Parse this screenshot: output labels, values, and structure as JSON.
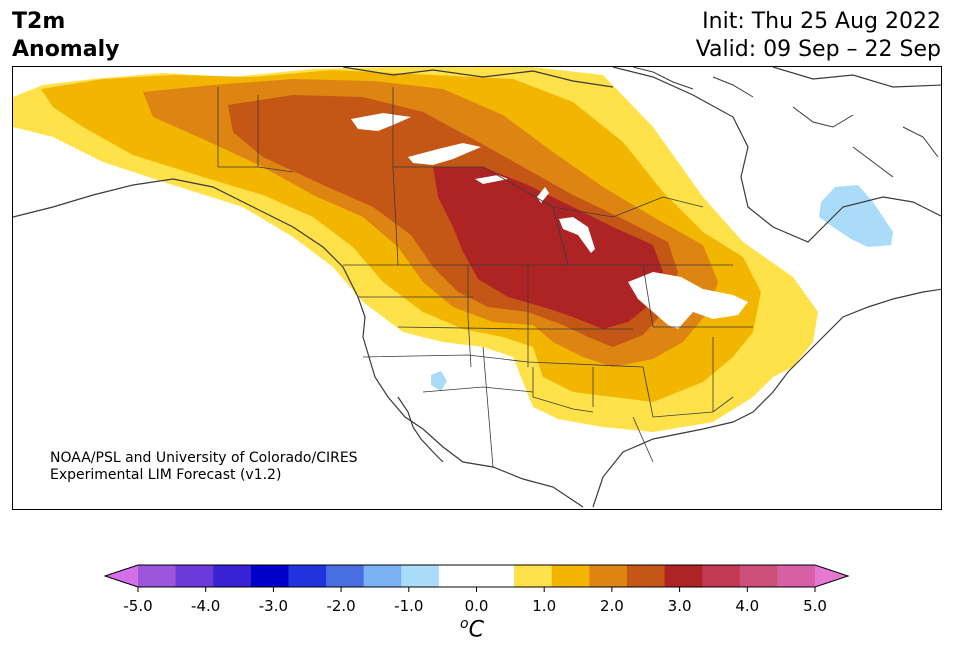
{
  "title": {
    "line1": "T2m",
    "line2": "Anomaly"
  },
  "dates": {
    "init": "Init: Thu 25 Aug 2022",
    "valid": "Valid: 09 Sep – 22 Sep"
  },
  "credit": {
    "line1": "NOAA/PSL and University of Colorado/CIRES",
    "line2": "Experimental LIM Forecast (v1.2)"
  },
  "colorbar": {
    "colors": [
      "#d670e8",
      "#9b55db",
      "#6b3ad9",
      "#3a22d6",
      "#0000cc",
      "#2233dd",
      "#4a6fe3",
      "#7ab1f2",
      "#aadcfa",
      "#ffffff",
      "#ffffff",
      "#ffe14a",
      "#f2b600",
      "#dd8412",
      "#c55716",
      "#ae2424",
      "#c23b52",
      "#cd4f7a",
      "#d960a4",
      "#e678d4"
    ],
    "ticks": [
      "-5.0",
      "-4.0",
      "-3.0",
      "-2.0",
      "-1.0",
      "0.0",
      "1.0",
      "2.0",
      "3.0",
      "4.0",
      "5.0"
    ],
    "min": -5,
    "max": 5,
    "unit_base": "o",
    "unit_letter": "C"
  },
  "map_colors": {
    "a1": "#ffe14a",
    "a15": "#f2b600",
    "a2": "#dd8412",
    "a25": "#c55716",
    "a3": "#ae2424",
    "neg1": "#aadcfa",
    "coast": "#3a3a3a"
  }
}
